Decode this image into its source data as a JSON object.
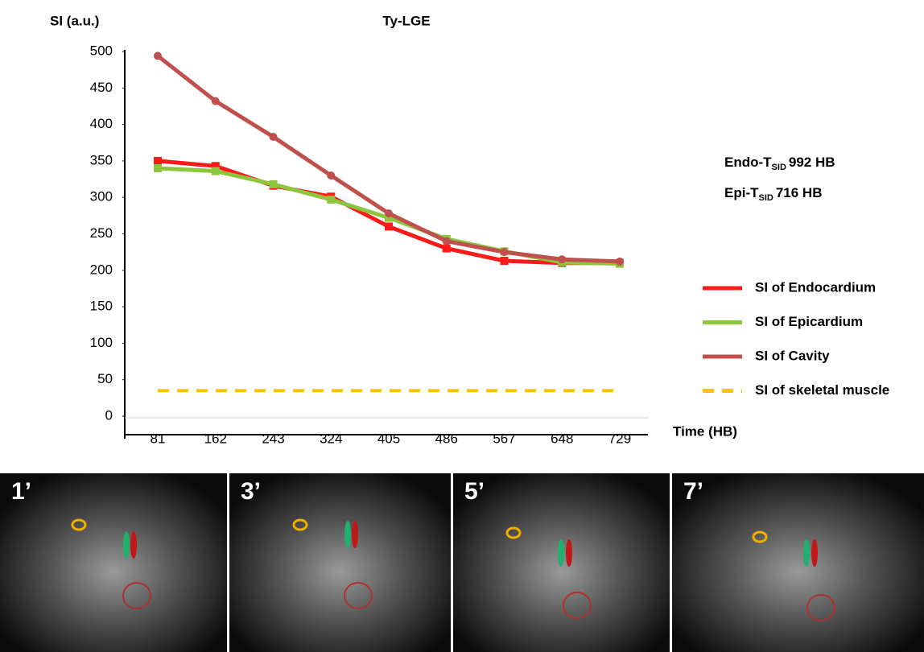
{
  "chart_data": {
    "type": "line",
    "title": "Ty-LGE",
    "y_label": "SI (a.u.)",
    "x_label": "Time (HB)",
    "categories": [
      "81",
      "162",
      "243",
      "324",
      "405",
      "486",
      "567",
      "648",
      "729"
    ],
    "ylim": [
      0,
      500
    ],
    "yticks": [
      0,
      50,
      100,
      150,
      200,
      250,
      300,
      350,
      400,
      450,
      500
    ],
    "series": [
      {
        "name": "SI of Endocardium",
        "color": "#ff1a1a",
        "marker": "square",
        "dash": "solid",
        "values": [
          350,
          343,
          316,
          301,
          260,
          230,
          213,
          210,
          210
        ]
      },
      {
        "name": "SI of Epicardium",
        "color": "#8cc63f",
        "marker": "square",
        "dash": "solid",
        "values": [
          340,
          336,
          318,
          297,
          272,
          243,
          226,
          211,
          209
        ]
      },
      {
        "name": "SI of Cavity",
        "color": "#c0504d",
        "marker": "circle",
        "dash": "solid",
        "values": [
          494,
          432,
          383,
          330,
          278,
          240,
          225,
          215,
          212
        ]
      },
      {
        "name": "SI of skeletal muscle",
        "color": "#ffc000",
        "marker": "none",
        "dash": "dashed",
        "values": [
          35,
          35,
          35,
          35,
          35,
          35,
          35,
          35,
          35
        ]
      }
    ],
    "annotations": [
      {
        "text": "Endo-T",
        "sub": "SID",
        "rest": "992 HB"
      },
      {
        "text": "Epi-T",
        "sub": "SID",
        "rest": "716 HB"
      }
    ]
  },
  "panels": [
    {
      "label": "1’"
    },
    {
      "label": "3’"
    },
    {
      "label": "5’"
    },
    {
      "label": "7’"
    }
  ]
}
